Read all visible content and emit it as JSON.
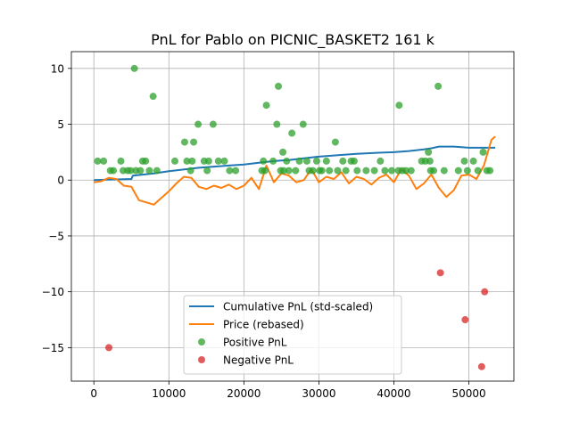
{
  "chart_data": {
    "type": "line",
    "title": "PnL for Pablo on PICNIC_BASKET2 161 k",
    "xlabel": "",
    "ylabel": "",
    "xlim": [
      -3000,
      56000
    ],
    "ylim": [
      -18,
      11.5
    ],
    "xticks": [
      0,
      10000,
      20000,
      30000,
      40000,
      50000
    ],
    "xtick_labels": [
      "0",
      "10000",
      "20000",
      "30000",
      "40000",
      "50000"
    ],
    "yticks": [
      10,
      5,
      0,
      -5,
      -10,
      -15
    ],
    "ytick_labels": [
      "10",
      "5",
      "0",
      "−5",
      "−10",
      "−15"
    ],
    "grid": true,
    "legend_position": "lower-center",
    "colors": {
      "cumulative": "#1f77b4",
      "price": "#ff7f0e",
      "positive": "#2ca02c",
      "negative": "#d62728"
    },
    "series": [
      {
        "name": "Cumulative PnL (std-scaled)",
        "kind": "line",
        "x": [
          0,
          5000,
          5200,
          8000,
          10000,
          14000,
          18000,
          20000,
          22000,
          24000,
          25000,
          26000,
          28000,
          30000,
          32000,
          35000,
          38000,
          40000,
          42000,
          44000,
          45000,
          46000,
          48000,
          50000,
          52000,
          53500
        ],
        "y": [
          0.0,
          0.1,
          0.4,
          0.6,
          0.8,
          1.1,
          1.3,
          1.4,
          1.55,
          1.7,
          1.75,
          1.8,
          1.95,
          2.1,
          2.2,
          2.35,
          2.45,
          2.5,
          2.6,
          2.75,
          2.85,
          3.0,
          3.0,
          2.9,
          2.9,
          2.9
        ]
      },
      {
        "name": "Price (rebased)",
        "kind": "line",
        "x": [
          0,
          1000,
          2000,
          3000,
          4000,
          5000,
          6000,
          7000,
          8000,
          9000,
          10000,
          11000,
          12000,
          13000,
          14000,
          15000,
          16000,
          17000,
          18000,
          19000,
          20000,
          21000,
          22000,
          23000,
          24000,
          25000,
          26000,
          27000,
          28000,
          29000,
          30000,
          31000,
          32000,
          33000,
          34000,
          35000,
          36000,
          37000,
          38000,
          39000,
          40000,
          41000,
          42000,
          43000,
          44000,
          45000,
          46000,
          47000,
          48000,
          49000,
          50000,
          51000,
          52000,
          53000,
          53500
        ],
        "y": [
          -0.2,
          -0.1,
          0.2,
          0.1,
          -0.5,
          -0.6,
          -1.8,
          -2.0,
          -2.2,
          -1.6,
          -1.0,
          -0.3,
          0.3,
          0.2,
          -0.6,
          -0.8,
          -0.5,
          -0.7,
          -0.4,
          -0.8,
          -0.5,
          0.2,
          -0.8,
          1.3,
          -0.2,
          0.6,
          0.4,
          -0.2,
          0.0,
          1.0,
          -0.2,
          0.3,
          0.1,
          0.7,
          -0.3,
          0.3,
          0.1,
          -0.4,
          0.2,
          0.5,
          -0.2,
          1.0,
          0.4,
          -0.8,
          -0.3,
          0.5,
          -0.7,
          -1.5,
          -0.9,
          0.4,
          0.5,
          0.1,
          1.3,
          3.6,
          3.9
        ]
      },
      {
        "name": "Positive PnL",
        "kind": "scatter",
        "x": [
          500,
          1300,
          2200,
          2600,
          3600,
          3900,
          4500,
          4900,
          5400,
          5600,
          6200,
          6500,
          6900,
          7400,
          7900,
          8400,
          10800,
          12100,
          12400,
          12900,
          13100,
          13300,
          13900,
          14700,
          15100,
          15300,
          15900,
          16600,
          17400,
          18100,
          18900,
          22400,
          22600,
          22800,
          23000,
          23900,
          24400,
          24600,
          24900,
          25200,
          25300,
          25700,
          26000,
          26400,
          26900,
          27400,
          27900,
          28400,
          28700,
          29200,
          29700,
          30100,
          30400,
          31000,
          31400,
          32200,
          32500,
          33200,
          33600,
          34300,
          34700,
          35100,
          36300,
          37400,
          38200,
          38800,
          39700,
          40600,
          40700,
          41100,
          41600,
          42300,
          43700,
          44200,
          44600,
          44800,
          44900,
          45300,
          45900,
          46700,
          48600,
          49400,
          49800,
          50600,
          51200,
          51900,
          52400,
          52800
        ],
        "y": [
          1.7,
          1.7,
          0.85,
          0.85,
          1.7,
          0.85,
          0.85,
          0.85,
          10.0,
          0.85,
          0.85,
          1.7,
          1.7,
          0.85,
          7.5,
          0.85,
          1.7,
          3.4,
          1.7,
          0.85,
          1.7,
          3.4,
          5.0,
          1.7,
          0.85,
          1.7,
          5.0,
          1.7,
          1.7,
          0.85,
          0.85,
          0.85,
          1.7,
          0.85,
          6.7,
          1.7,
          5.0,
          8.4,
          0.85,
          2.5,
          0.85,
          1.7,
          0.85,
          4.2,
          0.85,
          1.7,
          5.0,
          1.7,
          0.85,
          0.85,
          1.7,
          0.85,
          0.85,
          1.7,
          0.85,
          3.4,
          0.85,
          1.7,
          0.85,
          1.7,
          1.7,
          0.85,
          0.85,
          0.85,
          1.7,
          0.85,
          0.85,
          0.85,
          6.7,
          0.85,
          0.85,
          0.85,
          1.7,
          1.7,
          2.5,
          1.7,
          0.85,
          0.85,
          8.4,
          0.85,
          0.85,
          1.7,
          0.85,
          1.7,
          0.85,
          2.5,
          0.85,
          0.85
        ]
      },
      {
        "name": "Negative PnL",
        "kind": "scatter",
        "x": [
          2000,
          46200,
          49500,
          51700,
          52100
        ],
        "y": [
          -15.0,
          -8.3,
          -12.5,
          -16.7,
          -10.0
        ]
      }
    ]
  }
}
